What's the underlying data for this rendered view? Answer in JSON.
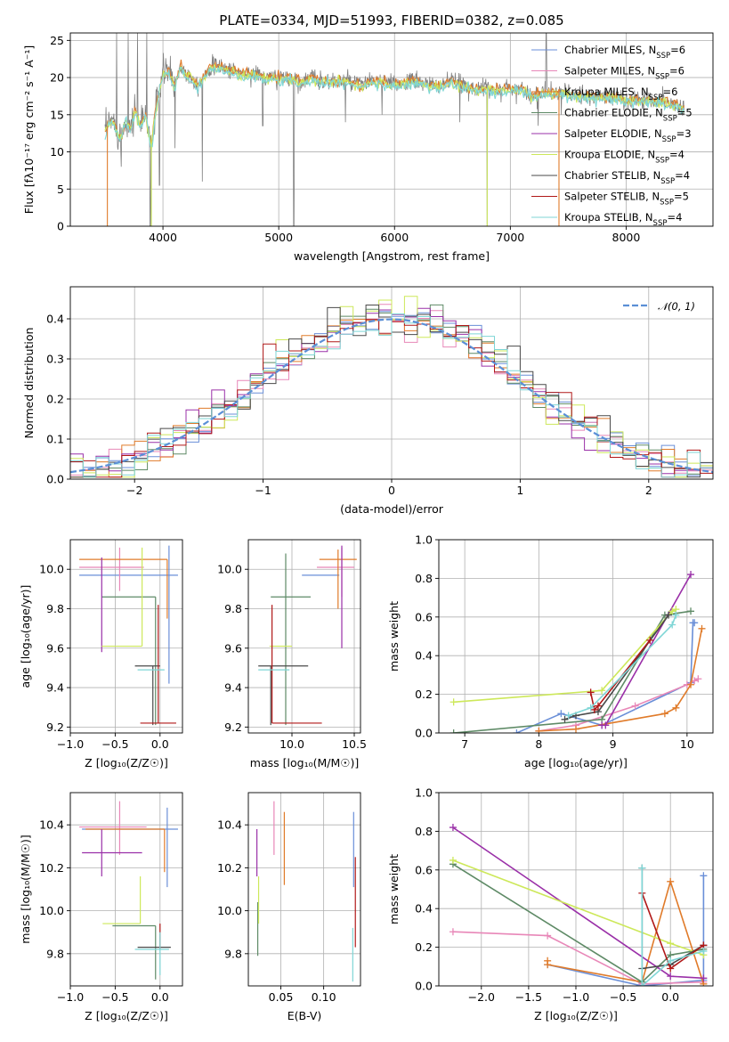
{
  "figure": {
    "title": "PLATE=0334, MJD=51993, FIBERID=0382, z=0.085"
  },
  "models": [
    {
      "name": "Chabrier MILES",
      "nssp": "6",
      "color": "#6a8fd8"
    },
    {
      "name": "Salpeter MILES",
      "nssp": "6",
      "color": "#e887b8"
    },
    {
      "name": "Kroupa MILES",
      "nssp": "6",
      "color": "#e07b2a"
    },
    {
      "name": "Chabrier ELODIE",
      "nssp": "5",
      "color": "#5e8a66"
    },
    {
      "name": "Salpeter ELODIE",
      "nssp": "3",
      "color": "#9a30a8"
    },
    {
      "name": "Kroupa ELODIE",
      "nssp": "4",
      "color": "#cde85a"
    },
    {
      "name": "Chabrier STELIB",
      "nssp": "4",
      "color": "#4a4a4a"
    },
    {
      "name": "Salpeter STELIB",
      "nssp": "5",
      "color": "#b01818"
    },
    {
      "name": "Kroupa STELIB",
      "nssp": "4",
      "color": "#7fd6d6"
    }
  ],
  "chart_data": [
    {
      "id": "spectrum",
      "type": "line",
      "xlabel": "wavelength [Angstrom, rest frame]",
      "ylabel": "Flux [fλ10⁻¹⁷ erg cm⁻² s⁻¹ A⁻¹]",
      "xlim": [
        3200,
        8750
      ],
      "ylim": [
        0,
        26
      ],
      "xticks": [
        4000,
        5000,
        6000,
        7000,
        8000
      ],
      "yticks": [
        0,
        5,
        10,
        15,
        20,
        25
      ],
      "legend": "top-right",
      "data_color": "#808080",
      "continuum": {
        "x": [
          3500,
          3520,
          3560,
          3600,
          3640,
          3680,
          3720,
          3760,
          3800,
          3850,
          3900,
          3950,
          4000,
          4050,
          4100,
          4150,
          4200,
          4250,
          4300,
          4350,
          4400,
          4500,
          4600,
          4700,
          4800,
          4900,
          5000,
          5100,
          5200,
          5300,
          5400,
          5500,
          5600,
          5700,
          5800,
          5900,
          6000,
          6100,
          6200,
          6300,
          6400,
          6500,
          6600,
          6700,
          6800,
          6900,
          7000,
          7100,
          7200,
          7300,
          7400,
          7500,
          7600,
          7700,
          7800,
          7900,
          8000,
          8100,
          8200,
          8300,
          8400,
          8500
        ],
        "y": [
          12.5,
          13.5,
          14.5,
          13.0,
          12.0,
          14.5,
          13.0,
          16.0,
          13.5,
          15.0,
          11.0,
          17.0,
          20.5,
          21.0,
          19.0,
          21.5,
          20.5,
          20.0,
          19.0,
          20.0,
          21.5,
          21.5,
          21.0,
          20.5,
          20.5,
          20.0,
          20.0,
          20.0,
          19.5,
          20.0,
          19.5,
          19.5,
          19.5,
          19.0,
          19.5,
          19.5,
          19.0,
          19.5,
          19.5,
          19.0,
          19.0,
          19.5,
          19.0,
          18.5,
          18.5,
          18.5,
          18.5,
          18.5,
          17.5,
          18.0,
          18.0,
          18.0,
          17.5,
          17.5,
          17.5,
          17.5,
          17.0,
          17.0,
          17.0,
          17.0,
          16.5,
          16.0
        ]
      },
      "spikes_down": [
        {
          "x": 3640,
          "y": 8.0
        },
        {
          "x": 3890,
          "y": 0
        },
        {
          "x": 3970,
          "y": 5.5
        },
        {
          "x": 4105,
          "y": 10.5
        },
        {
          "x": 4340,
          "y": 6.0
        },
        {
          "x": 4862,
          "y": 13.5
        },
        {
          "x": 5130,
          "y": 0
        },
        {
          "x": 5577,
          "y": 14.0
        },
        {
          "x": 5893,
          "y": 15.0
        },
        {
          "x": 6563,
          "y": 14.0
        },
        {
          "x": 6800,
          "y": 0
        },
        {
          "x": 7240,
          "y": 13.5
        },
        {
          "x": 7440,
          "y": 15.0
        }
      ],
      "spikes_up": [
        {
          "x": 3600,
          "y": 26
        },
        {
          "x": 3700,
          "y": 26
        },
        {
          "x": 3780,
          "y": 26
        },
        {
          "x": 3860,
          "y": 26
        },
        {
          "x": 7310,
          "y": 26
        }
      ]
    },
    {
      "id": "residuals",
      "type": "line",
      "xlabel": "(data-model)/error",
      "ylabel": "Normed distribution",
      "xlim": [
        -2.5,
        2.5
      ],
      "ylim": [
        0,
        0.48
      ],
      "xticks": [
        -2,
        -1,
        0,
        1,
        2
      ],
      "yticks": [
        0.0,
        0.1,
        0.2,
        0.3,
        0.4
      ],
      "legend": "top-right",
      "gaussian": {
        "label": "𝒩(0, 1)",
        "color": "#5b8fd6",
        "mean": 0,
        "sigma": 1
      }
    },
    {
      "id": "z-age",
      "type": "scatter",
      "xlabel": "Z [log₁₀(Z/Z☉)]",
      "ylabel": "age  [log₁₀(age/yr)]",
      "xlim": [
        -1.0,
        0.25
      ],
      "ylim": [
        9.17,
        10.15
      ],
      "xticks": [
        -1.0,
        -0.5,
        0.0
      ],
      "yticks": [
        9.2,
        9.4,
        9.6,
        9.8,
        10.0
      ],
      "errorbars": [
        {
          "model": 0,
          "x": 0.1,
          "xerr": [
            1.0,
            0.1
          ],
          "y": 9.97,
          "yerr": [
            0.55,
            0.15
          ]
        },
        {
          "model": 1,
          "x": -0.45,
          "xerr": [
            0.45,
            0.27
          ],
          "y": 10.01,
          "yerr": [
            0.12,
            0.1
          ]
        },
        {
          "model": 2,
          "x": 0.08,
          "xerr": [
            0.98,
            0.0
          ],
          "y": 10.05,
          "yerr": [
            0.3,
            0.0
          ]
        },
        {
          "model": 3,
          "x": -0.05,
          "xerr": [
            0.6,
            0.0
          ],
          "y": 9.86,
          "yerr": [
            0.65,
            0.0
          ]
        },
        {
          "model": 4,
          "x": -0.65,
          "xerr": [
            0.0,
            0.0
          ],
          "y": 9.82,
          "yerr": [
            0.24,
            0.24
          ]
        },
        {
          "model": 5,
          "x": -0.2,
          "xerr": [
            0.45,
            0.0
          ],
          "y": 9.61,
          "yerr": [
            0.0,
            0.5
          ]
        },
        {
          "model": 6,
          "x": -0.08,
          "xerr": [
            0.2,
            0.08
          ],
          "y": 9.51,
          "yerr": [
            0.3,
            0.0
          ]
        },
        {
          "model": 7,
          "x": -0.02,
          "xerr": [
            0.2,
            0.2
          ],
          "y": 9.22,
          "yerr": [
            0.0,
            0.6
          ]
        },
        {
          "model": 8,
          "x": 0.0,
          "xerr": [
            0.25,
            0.05
          ],
          "y": 9.49,
          "yerr": [
            0.0,
            0.0
          ]
        }
      ]
    },
    {
      "id": "mass-age",
      "type": "scatter",
      "xlabel": "mass [log₁₀(M/M☉)]",
      "ylabel": "",
      "xlim": [
        9.65,
        10.55
      ],
      "ylim": [
        9.17,
        10.15
      ],
      "xticks": [
        10.0,
        10.5
      ],
      "yticks": [
        9.2,
        9.4,
        9.6,
        9.8,
        10.0
      ],
      "errorbars": [
        {
          "model": 0,
          "x": 10.38,
          "xerr": [
            0.3,
            0.0
          ],
          "y": 9.97,
          "yerr": [
            0.0,
            0.0
          ]
        },
        {
          "model": 1,
          "x": 10.4,
          "xerr": [
            0.2,
            0.1
          ],
          "y": 10.01,
          "yerr": [
            0.15,
            0.1
          ]
        },
        {
          "model": 2,
          "x": 10.37,
          "xerr": [
            0.15,
            0.15
          ],
          "y": 10.05,
          "yerr": [
            0.25,
            0.05
          ]
        },
        {
          "model": 3,
          "x": 9.95,
          "xerr": [
            0.12,
            0.2
          ],
          "y": 9.86,
          "yerr": [
            0.65,
            0.22
          ]
        },
        {
          "model": 4,
          "x": 10.4,
          "xerr": [
            0.0,
            0.0
          ],
          "y": 9.82,
          "yerr": [
            0.22,
            0.3
          ]
        },
        {
          "model": 5,
          "x": 10.0,
          "xerr": [
            0.18,
            0.0
          ],
          "y": 9.61,
          "yerr": [
            0.0,
            0.0
          ]
        },
        {
          "model": 6,
          "x": 9.83,
          "xerr": [
            0.1,
            0.3
          ],
          "y": 9.51,
          "yerr": [
            0.3,
            0.0
          ]
        },
        {
          "model": 7,
          "x": 9.84,
          "xerr": [
            0.0,
            0.4
          ],
          "y": 9.22,
          "yerr": [
            0.0,
            0.6
          ]
        },
        {
          "model": 8,
          "x": 9.83,
          "xerr": [
            0.1,
            0.15
          ],
          "y": 9.49,
          "yerr": [
            0.0,
            0.0
          ]
        }
      ]
    },
    {
      "id": "age-weight",
      "type": "line",
      "xlabel": "age  [log₁₀(age/yr)]",
      "ylabel": "mass weight",
      "xlim": [
        6.65,
        10.35
      ],
      "ylim": [
        0,
        1.0
      ],
      "xticks": [
        7,
        8,
        9,
        10
      ],
      "yticks": [
        0.0,
        0.2,
        0.4,
        0.6,
        0.8,
        1.0
      ],
      "series": [
        {
          "model": 0,
          "x": [
            7.7,
            8.3,
            8.85,
            10.05,
            10.08,
            10.1
          ],
          "y": [
            0.0,
            0.1,
            0.04,
            0.26,
            0.57,
            0.57
          ]
        },
        {
          "model": 1,
          "x": [
            8.0,
            8.5,
            9.3,
            10.0,
            10.1,
            10.15
          ],
          "y": [
            0.01,
            0.04,
            0.14,
            0.25,
            0.27,
            0.28
          ]
        },
        {
          "model": 2,
          "x": [
            8.0,
            8.5,
            9.7,
            9.85,
            10.05,
            10.2
          ],
          "y": [
            0.01,
            0.02,
            0.1,
            0.13,
            0.25,
            0.54
          ]
        },
        {
          "model": 3,
          "x": [
            6.85,
            8.85,
            9.7,
            10.05
          ],
          "y": [
            0.0,
            0.07,
            0.61,
            0.63
          ]
        },
        {
          "model": 4,
          "x": [
            8.85,
            8.9,
            10.05
          ],
          "y": [
            0.04,
            0.04,
            0.82
          ]
        },
        {
          "model": 5,
          "x": [
            6.85,
            8.85,
            9.8,
            9.85
          ],
          "y": [
            0.16,
            0.22,
            0.63,
            0.64
          ]
        },
        {
          "model": 6,
          "x": [
            8.35,
            8.5,
            8.8,
            9.75
          ],
          "y": [
            0.07,
            0.09,
            0.11,
            0.61
          ]
        },
        {
          "model": 7,
          "x": [
            8.7,
            8.75,
            8.8,
            9.5
          ],
          "y": [
            0.21,
            0.12,
            0.14,
            0.48
          ]
        },
        {
          "model": 8,
          "x": [
            8.4,
            8.7,
            9.8,
            9.85
          ],
          "y": [
            0.09,
            0.13,
            0.56,
            0.61
          ]
        }
      ]
    },
    {
      "id": "z-mass",
      "type": "scatter",
      "xlabel": "Z [log₁₀(Z/Z☉)]",
      "ylabel": "mass [log₁₀(M/M☉)]",
      "xlim": [
        -1.0,
        0.25
      ],
      "ylim": [
        9.65,
        10.55
      ],
      "xticks": [
        -1.0,
        -0.5,
        0.0
      ],
      "yticks": [
        9.8,
        10.0,
        10.2,
        10.4
      ],
      "errorbars": [
        {
          "model": 0,
          "x": 0.08,
          "xerr": [
            0.95,
            0.12
          ],
          "y": 10.38,
          "yerr": [
            0.27,
            0.1
          ]
        },
        {
          "model": 1,
          "x": -0.45,
          "xerr": [
            0.45,
            0.3
          ],
          "y": 10.39,
          "yerr": [
            0.13,
            0.12
          ]
        },
        {
          "model": 2,
          "x": 0.05,
          "xerr": [
            0.88,
            0.0
          ],
          "y": 10.38,
          "yerr": [
            0.2,
            0.0
          ]
        },
        {
          "model": 3,
          "x": -0.05,
          "xerr": [
            0.48,
            0.0
          ],
          "y": 9.93,
          "yerr": [
            0.25,
            0.0
          ]
        },
        {
          "model": 4,
          "x": -0.65,
          "xerr": [
            0.22,
            0.45
          ],
          "y": 10.27,
          "yerr": [
            0.11,
            0.11
          ]
        },
        {
          "model": 5,
          "x": -0.22,
          "xerr": [
            0.42,
            0.0
          ],
          "y": 9.94,
          "yerr": [
            0.0,
            0.22
          ]
        },
        {
          "model": 6,
          "x": 0.0,
          "xerr": [
            0.25,
            0.12
          ],
          "y": 9.83,
          "yerr": [
            0.0,
            0.0
          ]
        },
        {
          "model": 7,
          "x": 0.0,
          "xerr": [
            0.0,
            0.0
          ],
          "y": 9.82,
          "yerr": [
            0.0,
            0.12
          ]
        },
        {
          "model": 8,
          "x": 0.0,
          "xerr": [
            0.28,
            0.1
          ],
          "y": 9.82,
          "yerr": [
            0.12,
            0.08
          ]
        }
      ]
    },
    {
      "id": "ebv-mass",
      "type": "scatter",
      "xlabel": "E(B-V)",
      "ylabel": "",
      "xlim": [
        0.012,
        0.143
      ],
      "ylim": [
        9.65,
        10.55
      ],
      "xticks": [
        0.05,
        0.1
      ],
      "yticks": [
        9.8,
        10.0,
        10.2,
        10.4
      ],
      "errorbars": [
        {
          "model": 0,
          "x": 0.135,
          "yerr": [
            0.27,
            0.08
          ],
          "y": 10.38
        },
        {
          "model": 1,
          "x": 0.042,
          "yerr": [
            0.13,
            0.12
          ],
          "y": 10.39
        },
        {
          "model": 2,
          "x": 0.054,
          "yerr": [
            0.26,
            0.08
          ],
          "y": 10.38
        },
        {
          "model": 3,
          "x": 0.023,
          "yerr": [
            0.14,
            0.11
          ],
          "y": 9.93
        },
        {
          "model": 4,
          "x": 0.022,
          "yerr": [
            0.11,
            0.11
          ],
          "y": 10.27
        },
        {
          "model": 5,
          "x": 0.024,
          "yerr": [
            0.0,
            0.22
          ],
          "y": 9.94
        },
        {
          "model": 6,
          "x": 0.134,
          "yerr": [
            0.0,
            0.0
          ],
          "y": 9.83
        },
        {
          "model": 7,
          "x": 0.137,
          "yerr": [
            0.0,
            0.42
          ],
          "y": 9.83
        },
        {
          "model": 8,
          "x": 0.134,
          "yerr": [
            0.15,
            0.1
          ],
          "y": 9.82
        }
      ]
    },
    {
      "id": "z-weight",
      "type": "line",
      "xlabel": "Z [log₁₀(Z/Z☉)]",
      "ylabel": "mass weight",
      "xlim": [
        -2.45,
        0.45
      ],
      "ylim": [
        0,
        1.0
      ],
      "xticks": [
        -2.0,
        -1.5,
        -1.0,
        -0.5,
        0.0
      ],
      "yticks": [
        0.0,
        0.2,
        0.4,
        0.6,
        0.8,
        1.0
      ],
      "series": [
        {
          "model": 0,
          "x": [
            -1.3,
            -0.3,
            0.35,
            0.35
          ],
          "y": [
            0.11,
            0.0,
            0.03,
            0.57
          ]
        },
        {
          "model": 1,
          "x": [
            -2.3,
            -1.3,
            -0.3,
            0.35
          ],
          "y": [
            0.28,
            0.26,
            0.01,
            0.02
          ]
        },
        {
          "model": 2,
          "x": [
            -1.3,
            -1.3,
            -0.3,
            0.0,
            0.35
          ],
          "y": [
            0.13,
            0.11,
            0.02,
            0.54,
            0.01
          ]
        },
        {
          "model": 3,
          "x": [
            -2.3,
            -0.3,
            0.0,
            0.35
          ],
          "y": [
            0.63,
            0.02,
            0.16,
            0.19
          ]
        },
        {
          "model": 4,
          "x": [
            -2.3,
            0.0,
            0.35
          ],
          "y": [
            0.82,
            0.05,
            0.04
          ]
        },
        {
          "model": 5,
          "x": [
            -2.3,
            0.0,
            0.35
          ],
          "y": [
            0.65,
            0.22,
            0.16
          ]
        },
        {
          "model": 6,
          "x": [
            -0.3,
            -0.3,
            0.0,
            0.35
          ],
          "y": [
            0.61,
            0.09,
            0.11,
            0.21
          ]
        },
        {
          "model": 7,
          "x": [
            -0.3,
            0.0,
            0.35
          ],
          "y": [
            0.48,
            0.09,
            0.21
          ]
        },
        {
          "model": 8,
          "x": [
            -0.3,
            -0.3,
            0.0,
            0.35
          ],
          "y": [
            0.61,
            0.0,
            0.13,
            0.18
          ]
        }
      ]
    }
  ]
}
